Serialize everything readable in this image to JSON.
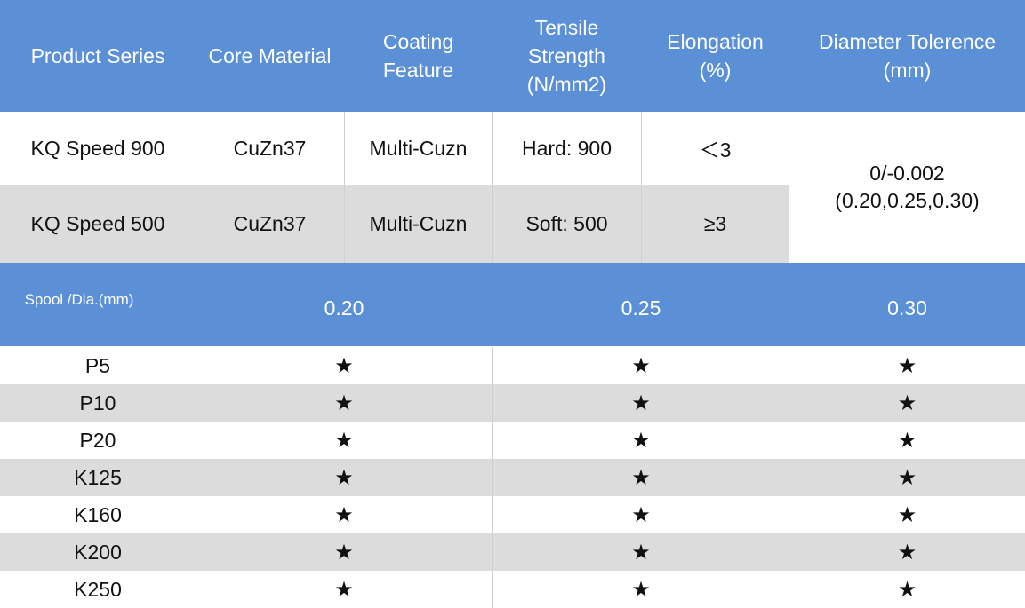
{
  "header": {
    "cols": [
      {
        "lines": [
          "Product Series"
        ]
      },
      {
        "lines": [
          "Core Material"
        ]
      },
      {
        "lines": [
          "Coating",
          "Feature"
        ]
      },
      {
        "lines": [
          "Tensile",
          "Strength",
          "(N/mm2)"
        ]
      },
      {
        "lines": [
          "Elongation",
          "(%)"
        ]
      },
      {
        "lines": [
          "Diameter Tolerence",
          "(mm)"
        ]
      }
    ]
  },
  "products": [
    {
      "series": "KQ Speed 900",
      "core": "CuZn37",
      "coating": "Multi-Cuzn",
      "tensile": "Hard: 900",
      "elongation": "＜3"
    },
    {
      "series": "KQ Speed 500",
      "core": "CuZn37",
      "coating": "Multi-Cuzn",
      "tensile": "Soft: 500",
      "elongation": "≥3"
    }
  ],
  "tolerance": {
    "line1": "0/-0.002",
    "line2": "(0.20,0.25,0.30)"
  },
  "spool_header": {
    "label": "Spool /Dia.(mm)",
    "dias": [
      "0.20",
      "0.25",
      "0.30"
    ]
  },
  "spools": [
    {
      "name": "P5",
      "marks": [
        "★",
        "★",
        "★"
      ]
    },
    {
      "name": "P10",
      "marks": [
        "★",
        "★",
        "★"
      ]
    },
    {
      "name": "P20",
      "marks": [
        "★",
        "★",
        "★"
      ]
    },
    {
      "name": "K125",
      "marks": [
        "★",
        "★",
        "★"
      ]
    },
    {
      "name": "K160",
      "marks": [
        "★",
        "★",
        "★"
      ]
    },
    {
      "name": "K200",
      "marks": [
        "★",
        "★",
        "★"
      ]
    },
    {
      "name": "K250",
      "marks": [
        "★",
        "★",
        "★"
      ]
    }
  ],
  "colors": {
    "header_blue": "#5b8fd6",
    "row_gray": "#dcdcdc",
    "white": "#ffffff"
  }
}
